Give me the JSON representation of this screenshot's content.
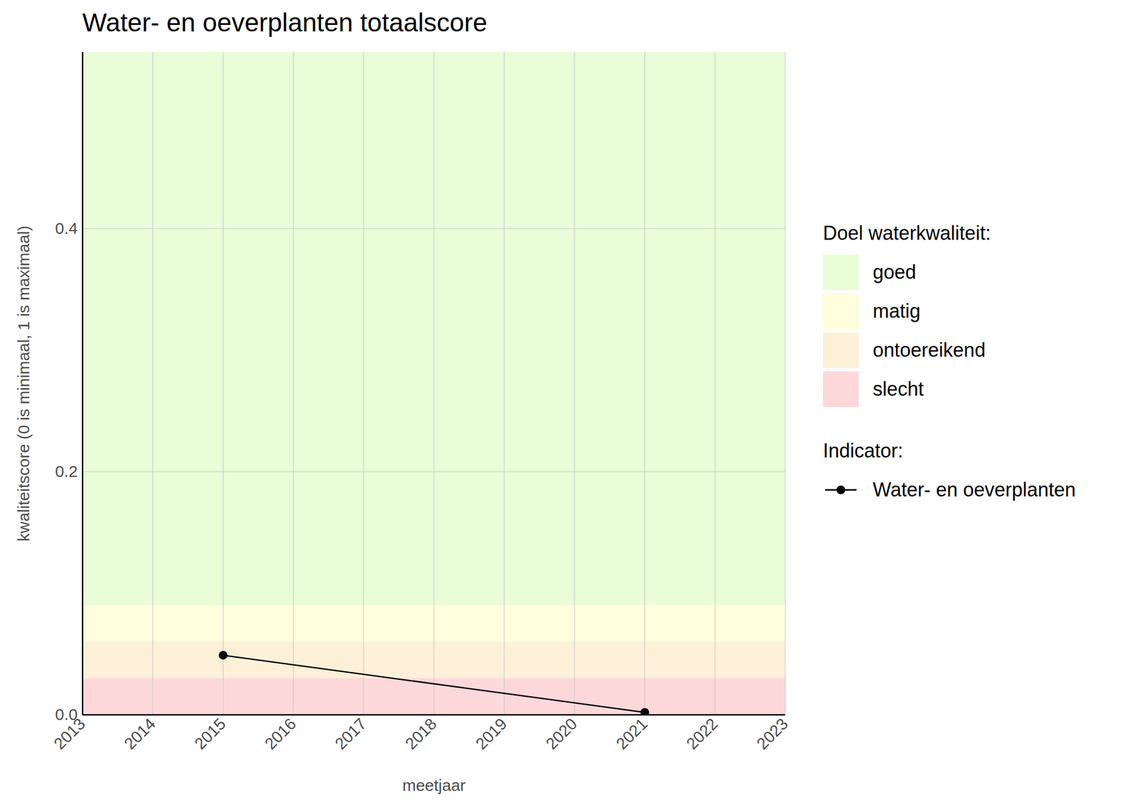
{
  "chart_data": {
    "type": "line",
    "title": "Water- en oeverplanten totaalscore",
    "xlabel": "meetjaar",
    "ylabel": "kwaliteitscore (0 is minimaal, 1 is maximaal)",
    "x": [
      2015,
      2021
    ],
    "series": [
      {
        "name": "Water- en oeverplanten",
        "color": "#000000",
        "marker": "circle",
        "values": [
          0.049,
          0.002
        ]
      }
    ],
    "xlim": [
      2013,
      2023
    ],
    "xticks": [
      2013,
      2014,
      2015,
      2016,
      2017,
      2018,
      2019,
      2020,
      2021,
      2022,
      2023
    ],
    "ylim": [
      0,
      0.545
    ],
    "yticks": [
      {
        "value": 0,
        "label": "0.0"
      },
      0.2,
      0.4
    ],
    "grid": true,
    "legend": "right",
    "band_legend_title": "Doel waterkwaliteit:",
    "series_legend_title": "Indicator:",
    "bands": [
      {
        "name": "goed",
        "color": "#e8fdd8",
        "from": 0.09,
        "to": 0.545
      },
      {
        "name": "matig",
        "color": "#fefedc",
        "from": 0.06,
        "to": 0.09
      },
      {
        "name": "ontoereikend",
        "color": "#fdf0d8",
        "from": 0.03,
        "to": 0.06
      },
      {
        "name": "slecht",
        "color": "#fdd8da",
        "from": 0,
        "to": 0.03
      }
    ]
  }
}
